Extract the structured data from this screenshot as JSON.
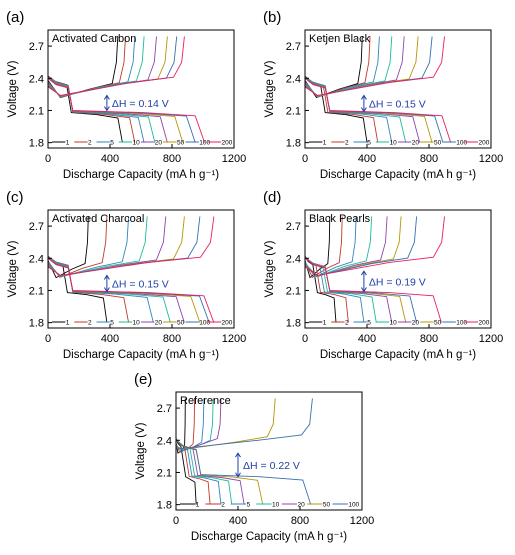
{
  "colors": {
    "cycle_palette": [
      "#000000",
      "#c0392b",
      "#2e86c1",
      "#1abc9c",
      "#8e44ad",
      "#b7950b",
      "#3a6fb0",
      "#e91e63",
      "#7f7f7f"
    ],
    "annotation": "#1f3fa8"
  },
  "chart_data": [
    {
      "panel_label": "(a)",
      "type": "line",
      "title": "Activated Carbon",
      "xlabel": "Discharge Capacity (mA h g⁻¹)",
      "ylabel": "Voltage (V)",
      "xlim": [
        0,
        1200
      ],
      "ylim": [
        1.75,
        2.85
      ],
      "xticks": [
        "0",
        "400",
        "800",
        "1200"
      ],
      "yticks": [
        "1.8",
        "2.1",
        "2.4",
        "2.7"
      ],
      "annotation": {
        "text": "ΔH = 0.14 V",
        "x": 380,
        "y_top": 2.24,
        "y_bottom": 2.1
      },
      "legend": [
        "1",
        "2",
        "5",
        "10",
        "20",
        "50",
        "100",
        "200"
      ],
      "series": [
        {
          "name": "1",
          "charge_end": 450,
          "discharge_end": 480
        },
        {
          "name": "2",
          "charge_end": 500,
          "discharge_end": 560
        },
        {
          "name": "5",
          "charge_end": 560,
          "discharge_end": 620
        },
        {
          "name": "10",
          "charge_end": 620,
          "discharge_end": 690
        },
        {
          "name": "20",
          "charge_end": 700,
          "discharge_end": 770
        },
        {
          "name": "50",
          "charge_end": 770,
          "discharge_end": 870
        },
        {
          "name": "100",
          "charge_end": 830,
          "discharge_end": 950
        },
        {
          "name": "200",
          "charge_end": 880,
          "discharge_end": 1010
        }
      ]
    },
    {
      "panel_label": "(b)",
      "type": "line",
      "title": "Ketjen Black",
      "xlabel": "Discharge Capacity (mA h g⁻¹)",
      "ylabel": "Voltage (V)",
      "xlim": [
        0,
        1200
      ],
      "ylim": [
        1.75,
        2.85
      ],
      "xticks": [
        "0",
        "400",
        "800",
        "1200"
      ],
      "yticks": [
        "1.8",
        "2.1",
        "2.4",
        "2.7"
      ],
      "annotation": {
        "text": "ΔH = 0.15 V",
        "x": 380,
        "y_top": 2.24,
        "y_bottom": 2.09
      },
      "legend": [
        "1",
        "2",
        "5",
        "10",
        "20",
        "50",
        "100",
        "200"
      ],
      "series": [
        {
          "name": "1",
          "charge_end": 370,
          "discharge_end": 400
        },
        {
          "name": "2",
          "charge_end": 420,
          "discharge_end": 470
        },
        {
          "name": "5",
          "charge_end": 480,
          "discharge_end": 560
        },
        {
          "name": "10",
          "charge_end": 560,
          "discharge_end": 650
        },
        {
          "name": "20",
          "charge_end": 640,
          "discharge_end": 740
        },
        {
          "name": "50",
          "charge_end": 730,
          "discharge_end": 820
        },
        {
          "name": "100",
          "charge_end": 820,
          "discharge_end": 890
        },
        {
          "name": "200",
          "charge_end": 900,
          "discharge_end": 940
        }
      ]
    },
    {
      "panel_label": "(c)",
      "type": "line",
      "title": "Activated Charcoal",
      "xlabel": "Discharge Capacity (mA h g⁻¹)",
      "ylabel": "Voltage (V)",
      "xlim": [
        0,
        1200
      ],
      "ylim": [
        1.75,
        2.85
      ],
      "xticks": [
        "0",
        "400",
        "800",
        "1200"
      ],
      "yticks": [
        "1.8",
        "2.1",
        "2.4",
        "2.7"
      ],
      "annotation": {
        "text": "ΔH = 0.15 V",
        "x": 380,
        "y_top": 2.24,
        "y_bottom": 2.09
      },
      "legend": [
        "1",
        "2",
        "5",
        "10",
        "20",
        "50",
        "100",
        "200"
      ],
      "series": [
        {
          "name": "1",
          "charge_end": 260,
          "discharge_end": 380
        },
        {
          "name": "2",
          "charge_end": 380,
          "discharge_end": 520
        },
        {
          "name": "5",
          "charge_end": 520,
          "discharge_end": 680
        },
        {
          "name": "10",
          "charge_end": 640,
          "discharge_end": 790
        },
        {
          "name": "20",
          "charge_end": 760,
          "discharge_end": 880
        },
        {
          "name": "50",
          "charge_end": 880,
          "discharge_end": 980
        },
        {
          "name": "100",
          "charge_end": 980,
          "discharge_end": 1040
        },
        {
          "name": "200",
          "charge_end": 1070,
          "discharge_end": 1070
        }
      ]
    },
    {
      "panel_label": "(d)",
      "type": "line",
      "title": "Black Pearls",
      "xlabel": "Discharge Capacity (mA h g⁻¹)",
      "ylabel": "Voltage (V)",
      "xlim": [
        0,
        1200
      ],
      "ylim": [
        1.75,
        2.85
      ],
      "xticks": [
        "0",
        "400",
        "800",
        "1200"
      ],
      "yticks": [
        "1.8",
        "2.1",
        "2.4",
        "2.7"
      ],
      "annotation": {
        "text": "ΔH = 0.19 V",
        "x": 380,
        "y_top": 2.28,
        "y_bottom": 2.09
      },
      "legend": [
        "1",
        "2",
        "5",
        "10",
        "20",
        "50",
        "100",
        "200"
      ],
      "series": [
        {
          "name": "1",
          "charge_end": 160,
          "discharge_end": 200
        },
        {
          "name": "2",
          "charge_end": 240,
          "discharge_end": 280
        },
        {
          "name": "5",
          "charge_end": 330,
          "discharge_end": 380
        },
        {
          "name": "10",
          "charge_end": 430,
          "discharge_end": 460
        },
        {
          "name": "20",
          "charge_end": 530,
          "discharge_end": 560
        },
        {
          "name": "50",
          "charge_end": 620,
          "discharge_end": 650
        },
        {
          "name": "100",
          "charge_end": 720,
          "discharge_end": 720
        },
        {
          "name": "200",
          "charge_end": 900,
          "discharge_end": 880
        }
      ]
    },
    {
      "panel_label": "(e)",
      "type": "line",
      "title": "Reference",
      "xlabel": "Discharge Capacity (mA h g⁻¹)",
      "ylabel": "Voltage (V)",
      "xlim": [
        0,
        1200
      ],
      "ylim": [
        1.75,
        2.85
      ],
      "xticks": [
        "0",
        "400",
        "800",
        "1200"
      ],
      "yticks": [
        "1.8",
        "2.1",
        "2.4",
        "2.7"
      ],
      "annotation": {
        "text": "ΔH = 0.22 V",
        "x": 400,
        "y_top": 2.28,
        "y_bottom": 2.06
      },
      "legend": [
        "1",
        "2",
        "5",
        "10",
        "20",
        "50",
        "100"
      ],
      "series": [
        {
          "name": "1",
          "charge_end": 60,
          "discharge_end": 130
        },
        {
          "name": "2",
          "charge_end": 120,
          "discharge_end": 220
        },
        {
          "name": "5",
          "charge_end": 180,
          "discharge_end": 290
        },
        {
          "name": "10",
          "charge_end": 240,
          "discharge_end": 360
        },
        {
          "name": "20",
          "charge_end": 290,
          "discharge_end": 440
        },
        {
          "name": "50",
          "charge_end": 640,
          "discharge_end": 560
        },
        {
          "name": "100",
          "charge_end": 880,
          "discharge_end": 870
        }
      ]
    }
  ]
}
